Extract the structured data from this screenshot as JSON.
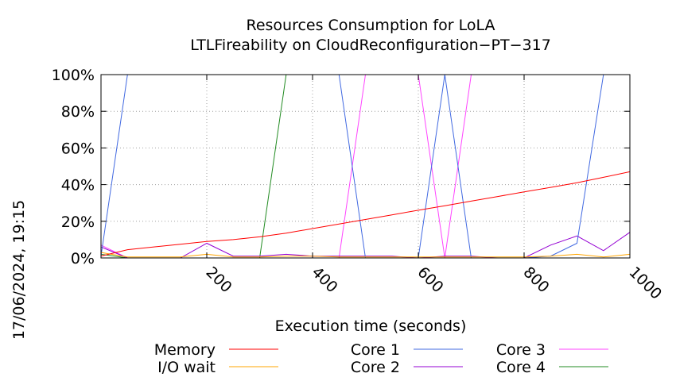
{
  "chart_data": {
    "type": "line",
    "title": [
      "Resources Consumption for LoLA",
      "LTLFireability on CloudReconfiguration−PT−317"
    ],
    "xlabel": "Execution time (seconds)",
    "ylabel": "",
    "side_label": "17/06/2024, 19:15",
    "xlim": [
      0,
      1000
    ],
    "ylim": [
      0,
      100
    ],
    "x_ticks": [
      200,
      400,
      600,
      800,
      1000
    ],
    "x_tick_labels": [
      "200",
      "400",
      "600",
      "800",
      "1000"
    ],
    "y_ticks": [
      0,
      20,
      40,
      60,
      80,
      100
    ],
    "y_tick_labels": [
      "0%",
      "20%",
      "40%",
      "60%",
      "80%",
      "100%"
    ],
    "grid": true,
    "legend_position": "bottom",
    "series": [
      {
        "name": "Memory",
        "color": "#ff0000",
        "x": [
          0,
          50,
          100,
          150,
          200,
          250,
          300,
          350,
          400,
          450,
          500,
          550,
          600,
          650,
          700,
          750,
          800,
          850,
          900,
          950,
          1000
        ],
        "y": [
          1,
          4.5,
          6,
          7.5,
          9,
          10,
          11.5,
          13.5,
          16,
          18.5,
          21,
          23.5,
          26,
          28.5,
          31,
          33.5,
          36,
          38.5,
          41,
          44,
          47
        ]
      },
      {
        "name": "I/O wait",
        "color": "#ffa500",
        "x": [
          0,
          50,
          100,
          150,
          200,
          250,
          300,
          350,
          400,
          450,
          500,
          550,
          600,
          650,
          700,
          750,
          800,
          850,
          900,
          950,
          1000
        ],
        "y": [
          3,
          0.5,
          0.5,
          0.5,
          2,
          0.5,
          0.5,
          1,
          1,
          0.5,
          0.5,
          0.5,
          0.5,
          0.5,
          0.5,
          0.5,
          0.5,
          1,
          2,
          0.5,
          2
        ]
      },
      {
        "name": "Core 1",
        "color": "#4169e1",
        "x": [
          0,
          50,
          100,
          150,
          200,
          250,
          300,
          350,
          400,
          450,
          500,
          550,
          600,
          650,
          700,
          750,
          800,
          850,
          900,
          950,
          1000
        ],
        "y": [
          1,
          100,
          100,
          100,
          100,
          100,
          100,
          100,
          100,
          100,
          0,
          0,
          0,
          100,
          0,
          0,
          0,
          1,
          8,
          100,
          100
        ]
      },
      {
        "name": "Core 2",
        "color": "#9400d3",
        "x": [
          0,
          50,
          100,
          150,
          200,
          250,
          300,
          350,
          400,
          450,
          500,
          550,
          600,
          650,
          700,
          750,
          800,
          850,
          900,
          950,
          1000
        ],
        "y": [
          6,
          0,
          0,
          0,
          8,
          1,
          1,
          2,
          1,
          1,
          1,
          1,
          0,
          1,
          1,
          0,
          0,
          7,
          12,
          4,
          14
        ]
      },
      {
        "name": "Core 3",
        "color": "#ff44ff",
        "x": [
          0,
          50,
          100,
          150,
          200,
          250,
          300,
          350,
          400,
          450,
          500,
          550,
          600,
          650,
          700,
          750,
          800,
          850,
          900,
          950,
          1000
        ],
        "y": [
          7,
          0,
          0,
          0,
          0,
          0,
          0,
          0,
          0,
          0,
          100,
          100,
          100,
          0,
          100,
          100,
          100,
          100,
          100,
          100,
          100
        ]
      },
      {
        "name": "Core 4",
        "color": "#228b22",
        "x": [
          0,
          50,
          100,
          150,
          200,
          250,
          300,
          350,
          400,
          450,
          500,
          550,
          600,
          650,
          700,
          750,
          800,
          850,
          900,
          950,
          1000
        ],
        "y": [
          2,
          0,
          0,
          0,
          0,
          0,
          0,
          100,
          100,
          100,
          100,
          100,
          100,
          100,
          100,
          100,
          100,
          100,
          100,
          100,
          100
        ]
      }
    ]
  }
}
